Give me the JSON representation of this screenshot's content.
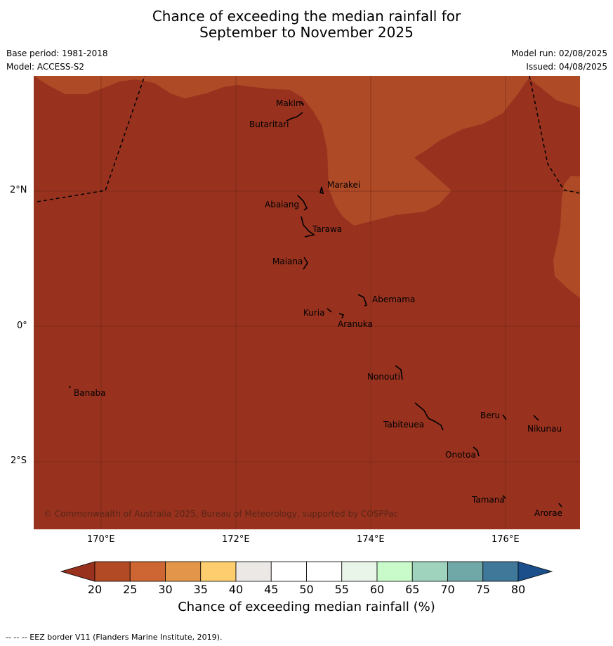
{
  "title_line1": "Chance of exceeding the median rainfall for",
  "title_line2": "September to November 2025",
  "base_period": "Base period: 1981-2018",
  "model": "Model: ACCESS-S2",
  "model_run": "Model run: 02/08/2025",
  "issued": "Issued: 04/08/2025",
  "copyright": "© Commonwealth of Australia 2025, Bureau of Meteorology, supported by COSPPac",
  "lon_ticks": [
    "170°E",
    "172°E",
    "174°E",
    "176°E"
  ],
  "lat_ticks": [
    "2°N",
    "0°",
    "2°S"
  ],
  "places": {
    "makin": "Makin",
    "butaritari": "Butaritari",
    "marakei": "Marakei",
    "abaiang": "Abaiang",
    "tarawa": "Tarawa",
    "maiana": "Maiana",
    "abemama": "Abemama",
    "kuria": "Kuria",
    "aranuka": "Aranuka",
    "nonouti": "Nonouti",
    "banaba": "Banaba",
    "beru": "Beru",
    "nikunau": "Nikunau",
    "tabiteuea": "Tabiteuea",
    "onotoa": "Onotoa",
    "tamana": "Tamana",
    "arorae": "Arorae"
  },
  "colorbar": {
    "labels": [
      "20",
      "25",
      "30",
      "35",
      "40",
      "45",
      "50",
      "55",
      "60",
      "65",
      "70",
      "75",
      "80"
    ],
    "colors": [
      "#b24a26",
      "#cd6632",
      "#e39649",
      "#fdcd6e",
      "#ebe8e6",
      "#ffffff",
      "#ffffff",
      "#eaf5ea",
      "#c9fbca",
      "#9fd3bd",
      "#70a7a7",
      "#3f7899"
    ],
    "under_color": "#98321f",
    "over_color": "#1a4f8c",
    "title": "Chance of exceeding median rainfall (%)"
  },
  "map_colors": {
    "lt20": "#98321f",
    "c20_25": "#ae4a26"
  },
  "footnote": "--  --  -- EEZ border V11 (Flanders Marine Institute, 2019)."
}
